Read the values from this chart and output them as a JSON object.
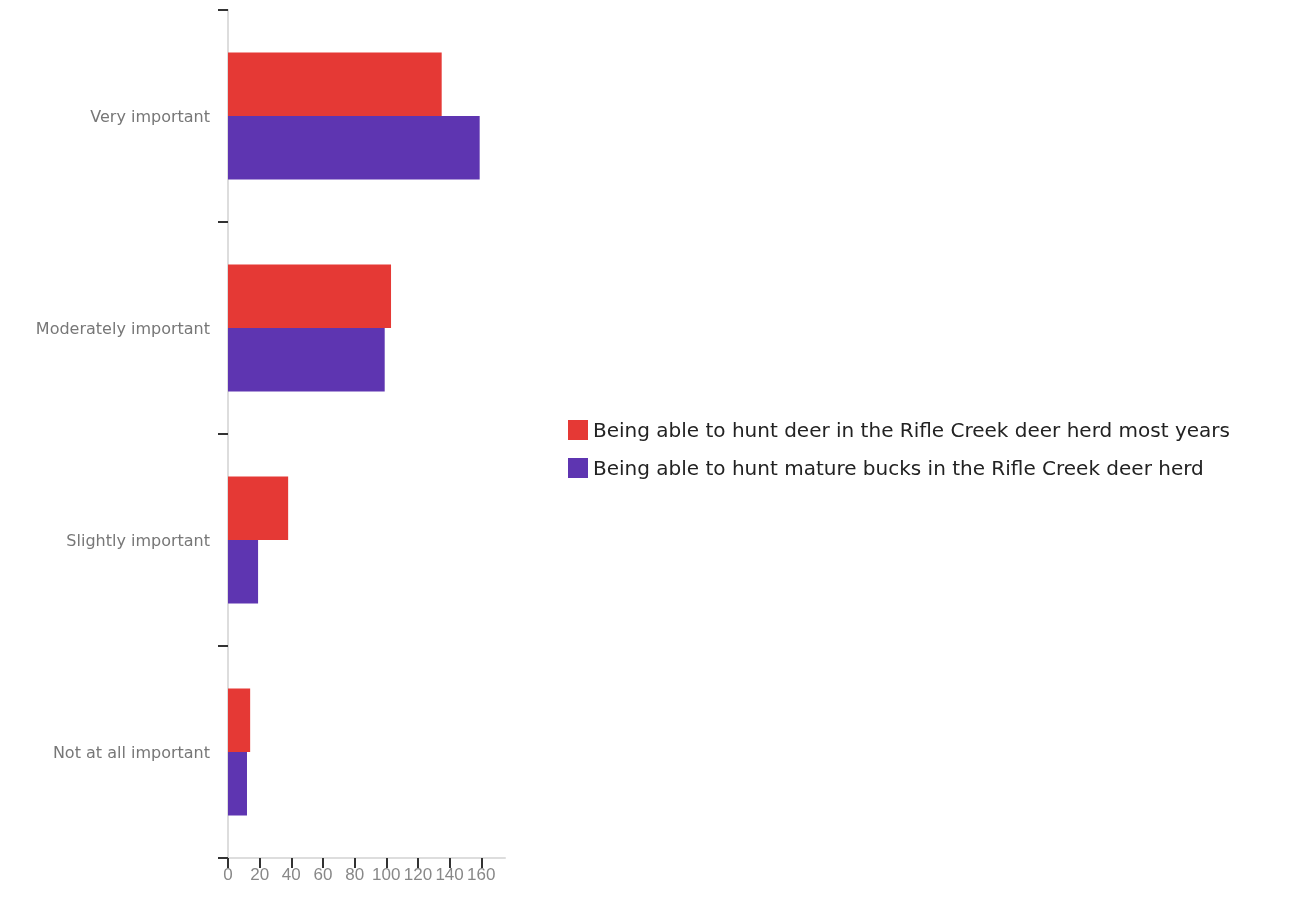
{
  "chart_data": {
    "type": "bar",
    "orientation": "horizontal",
    "categories": [
      "Very important",
      "Moderately important",
      "Slightly important",
      "Not at all important"
    ],
    "series": [
      {
        "name": "Being able to hunt deer in the Rifle Creek deer herd most years",
        "color": "#e53935",
        "values": [
          135,
          103,
          38,
          14
        ]
      },
      {
        "name": "Being able to hunt mature bucks in the Rifle Creek deer herd",
        "color": "#5e35b1",
        "values": [
          159,
          99,
          19,
          12
        ]
      }
    ],
    "xlim": [
      0,
      175
    ],
    "xticks": [
      0,
      20,
      40,
      60,
      80,
      100,
      120,
      140,
      160
    ],
    "grid": false,
    "legend": "right"
  }
}
